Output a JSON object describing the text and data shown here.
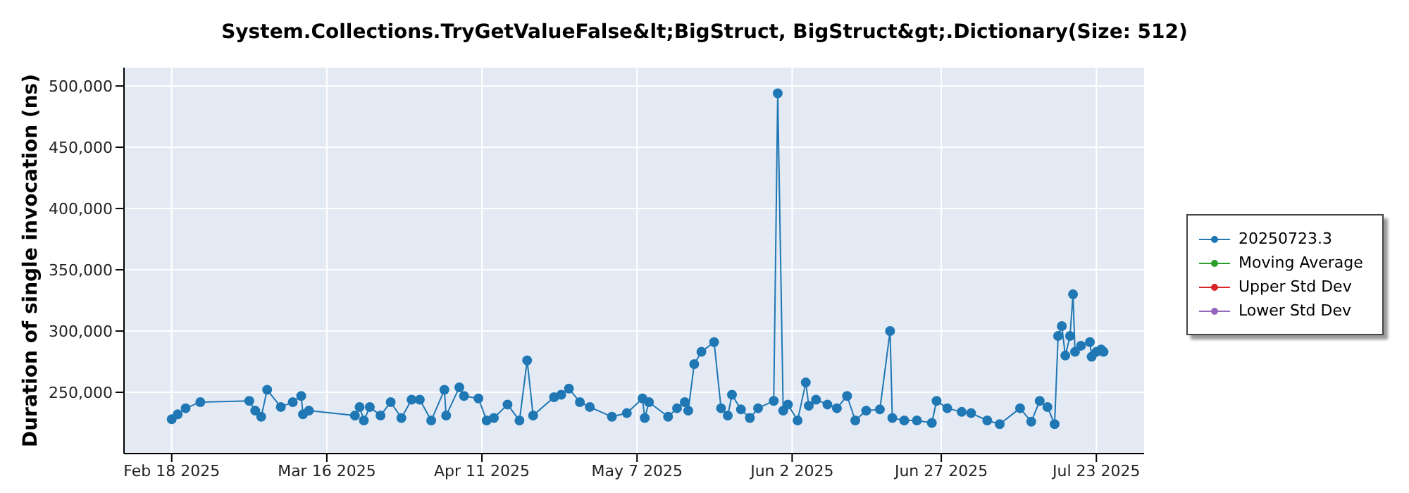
{
  "chart_data": {
    "type": "line",
    "title": "System.Collections.TryGetValueFalse&lt;BigStruct, BigStruct&gt;.Dictionary(Size: 512)",
    "ylabel": "Duration of single invocation (ns)",
    "x": [
      "2025-02-18T00:00",
      "2025-02-19T00:00",
      "2025-02-20T08:00",
      "2025-02-22T19:00",
      "2025-03-03T00:00",
      "2025-03-04T00:00",
      "2025-03-05T00:00",
      "2025-03-06T00:00",
      "2025-03-08T07:00",
      "2025-03-10T07:00",
      "2025-03-11T17:00",
      "2025-03-12T00:00",
      "2025-03-13T00:00",
      "2025-03-20T17:00",
      "2025-03-21T12:00",
      "2025-03-22T05:00",
      "2025-03-23T05:00",
      "2025-03-25T00:00",
      "2025-03-26T17:00",
      "2025-03-28T12:00",
      "2025-03-30T05:00",
      "2025-03-31T14:00",
      "2025-04-02T12:00",
      "2025-04-04T17:00",
      "2025-04-05T00:00",
      "2025-04-07T05:00",
      "2025-04-08T00:00",
      "2025-04-10T10:00",
      "2025-04-11T19:00",
      "2025-04-13T00:00",
      "2025-04-15T07:00",
      "2025-04-17T07:00",
      "2025-04-18T14:00",
      "2025-04-19T14:00",
      "2025-04-23T02:00",
      "2025-04-24T07:00",
      "2025-04-25T14:00",
      "2025-04-27T10:00",
      "2025-04-29T02:00",
      "2025-05-02T19:00",
      "2025-05-05T07:00",
      "2025-05-07T22:00",
      "2025-05-08T07:00",
      "2025-05-09T00:00",
      "2025-05-12T05:00",
      "2025-05-13T17:00",
      "2025-05-15T00:00",
      "2025-05-15T14:00",
      "2025-05-16T14:00",
      "2025-05-17T19:00",
      "2025-05-19T22:00",
      "2025-05-21T02:00",
      "2025-05-22T05:00",
      "2025-05-22T22:00",
      "2025-05-24T10:00",
      "2025-05-25T22:00",
      "2025-05-27T07:00",
      "2025-05-29T22:00",
      "2025-05-30T14:00",
      "2025-05-31T12:00",
      "2025-06-01T07:00",
      "2025-06-02T22:00",
      "2025-06-04T07:00",
      "2025-06-04T19:00",
      "2025-06-06T00:00",
      "2025-06-07T22:00",
      "2025-06-09T12:00",
      "2025-06-11T05:00",
      "2025-06-12T14:00",
      "2025-06-14T10:00",
      "2025-06-16T17:00",
      "2025-06-18T10:00",
      "2025-06-18T19:00",
      "2025-06-20T19:00",
      "2025-06-22T22:00",
      "2025-06-25T10:00",
      "2025-06-26T05:00",
      "2025-06-28T00:00",
      "2025-06-30T10:00",
      "2025-07-02T00:00",
      "2025-07-04T17:00",
      "2025-07-06T19:00",
      "2025-07-10T05:00",
      "2025-07-12T02:00",
      "2025-07-13T12:00",
      "2025-07-14T19:00",
      "2025-07-16T00:00",
      "2025-07-16T14:00",
      "2025-07-17T05:00",
      "2025-07-17T19:00",
      "2025-07-18T14:00",
      "2025-07-19T02:00",
      "2025-07-19T10:00",
      "2025-07-20T10:00",
      "2025-07-21T22:00",
      "2025-07-22T05:00",
      "2025-07-23T00:00",
      "2025-07-23T19:00",
      "2025-07-24T05:00"
    ],
    "series": [
      {
        "name": "20250723.3",
        "color": "#1f77b4",
        "values": [
          228000,
          232000,
          237000,
          242000,
          243000,
          235000,
          230000,
          252000,
          238000,
          242000,
          247000,
          232000,
          235000,
          231000,
          238000,
          227000,
          238000,
          231000,
          242000,
          229000,
          244000,
          244000,
          227000,
          252000,
          231000,
          254000,
          247000,
          245000,
          227000,
          229000,
          240000,
          227000,
          276000,
          231000,
          246000,
          248000,
          253000,
          242000,
          238000,
          230000,
          233000,
          245000,
          229000,
          242000,
          230000,
          237000,
          242000,
          235000,
          273000,
          283000,
          291000,
          237000,
          231000,
          248000,
          236000,
          229000,
          237000,
          243000,
          494000,
          235000,
          240000,
          227000,
          258000,
          239000,
          244000,
          240000,
          237000,
          247000,
          227000,
          235000,
          236000,
          300000,
          229000,
          227000,
          227000,
          225000,
          243000,
          237000,
          234000,
          233000,
          227000,
          224000,
          237000,
          226000,
          243000,
          238000,
          224000,
          296000,
          304000,
          280000,
          296000,
          330000,
          283000,
          288000,
          291000,
          279000,
          283000,
          285000,
          283000
        ]
      },
      {
        "name": "Moving Average",
        "color": "#2ca02c",
        "values": [
          null,
          null,
          null,
          null,
          null,
          null,
          null,
          null,
          null,
          null,
          null,
          null,
          null,
          null,
          null,
          null,
          null,
          null,
          null,
          null,
          null,
          null,
          null,
          null,
          null,
          null,
          null,
          null,
          null,
          null,
          null,
          null,
          null,
          null,
          null,
          null,
          null,
          null,
          null,
          null,
          null,
          null,
          null,
          null,
          null,
          null,
          null,
          null,
          null,
          null,
          null,
          null,
          null,
          null,
          null,
          null,
          null,
          null,
          null,
          null,
          null,
          null,
          null,
          null,
          null,
          null,
          null,
          null,
          null,
          null,
          null,
          null,
          null,
          null,
          null,
          null,
          null,
          null,
          null,
          null,
          null,
          null,
          null,
          null,
          null,
          null,
          null,
          null,
          null,
          null,
          null,
          null,
          null,
          null,
          null,
          null,
          null,
          null,
          null
        ]
      },
      {
        "name": "Upper Std Dev",
        "color": "#d62728",
        "values": [
          null,
          null,
          null,
          null,
          null,
          null,
          null,
          null,
          null,
          null,
          null,
          null,
          null,
          null,
          null,
          null,
          null,
          null,
          null,
          null,
          null,
          null,
          null,
          null,
          null,
          null,
          null,
          null,
          null,
          null,
          null,
          null,
          null,
          null,
          null,
          null,
          null,
          null,
          null,
          null,
          null,
          null,
          null,
          null,
          null,
          null,
          null,
          null,
          null,
          null,
          null,
          null,
          null,
          null,
          null,
          null,
          null,
          null,
          null,
          null,
          null,
          null,
          null,
          null,
          null,
          null,
          null,
          null,
          null,
          null,
          null,
          null,
          null,
          null,
          null,
          null,
          null,
          null,
          null,
          null,
          null,
          null,
          null,
          null,
          null,
          null,
          null,
          null,
          null,
          null,
          null,
          null,
          null,
          null,
          null,
          null,
          null,
          null,
          null
        ]
      },
      {
        "name": "Lower Std Dev",
        "color": "#9467bd",
        "values": [
          null,
          null,
          null,
          null,
          null,
          null,
          null,
          null,
          null,
          null,
          null,
          null,
          null,
          null,
          null,
          null,
          null,
          null,
          null,
          null,
          null,
          null,
          null,
          null,
          null,
          null,
          null,
          null,
          null,
          null,
          null,
          null,
          null,
          null,
          null,
          null,
          null,
          null,
          null,
          null,
          null,
          null,
          null,
          null,
          null,
          null,
          null,
          null,
          null,
          null,
          null,
          null,
          null,
          null,
          null,
          null,
          null,
          null,
          null,
          null,
          null,
          null,
          null,
          null,
          null,
          null,
          null,
          null,
          null,
          null,
          null,
          null,
          null,
          null,
          null,
          null,
          null,
          null,
          null,
          null,
          null,
          null,
          null,
          null,
          null,
          null,
          null,
          null,
          null,
          null,
          null,
          null,
          null,
          null,
          null,
          null,
          null,
          null,
          null
        ]
      }
    ],
    "xlim": [
      "2025-02-10",
      "2025-07-31"
    ],
    "xticks": [
      {
        "value": "2025-02-18",
        "label": "Feb 18 2025"
      },
      {
        "value": "2025-03-16",
        "label": "Mar 16 2025"
      },
      {
        "value": "2025-04-11",
        "label": "Apr 11 2025"
      },
      {
        "value": "2025-05-07",
        "label": "May 7 2025"
      },
      {
        "value": "2025-06-02",
        "label": "Jun 2 2025"
      },
      {
        "value": "2025-06-27",
        "label": "Jun 27 2025"
      },
      {
        "value": "2025-07-23",
        "label": "Jul 23 2025"
      }
    ],
    "ylim": [
      200000,
      515000
    ],
    "yticks": [
      {
        "value": 250000,
        "label": "250,000"
      },
      {
        "value": 300000,
        "label": "300,000"
      },
      {
        "value": 350000,
        "label": "350,000"
      },
      {
        "value": 400000,
        "label": "400,000"
      },
      {
        "value": 450000,
        "label": "450,000"
      },
      {
        "value": 500000,
        "label": "500,000"
      }
    ],
    "grid": true,
    "legend": "right",
    "marker": "circle",
    "line_style": "solid"
  }
}
